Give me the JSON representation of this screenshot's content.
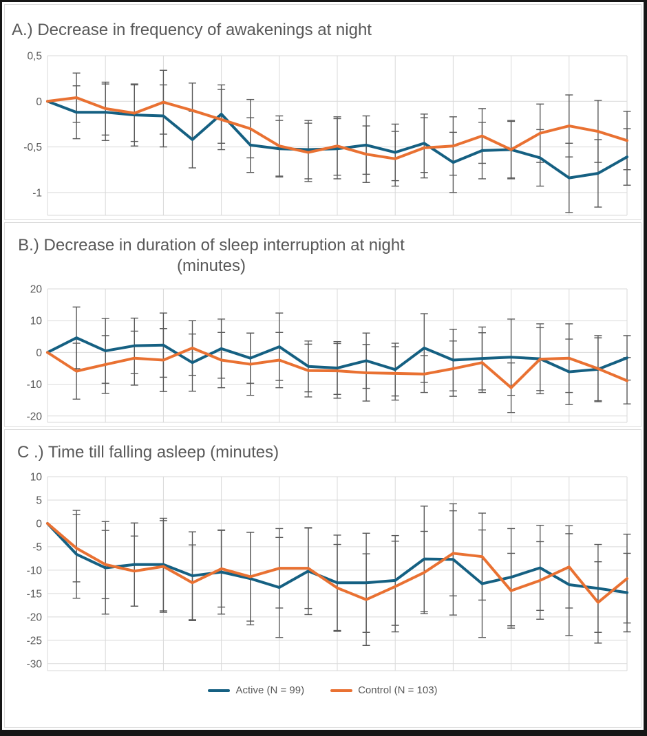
{
  "page": {
    "frame_color": "#161616",
    "background": "#ffffff"
  },
  "colors": {
    "active": "#156082",
    "control": "#E97132",
    "grid": "#D9D9D9",
    "error_bar": "#595959",
    "text": "#595959"
  },
  "legend": {
    "items": [
      {
        "label": "Active (N = 99)",
        "color_key": "active"
      },
      {
        "label": "Control (N = 103)",
        "color_key": "control"
      }
    ],
    "position": "bottom-center, shared, shown under chart C"
  },
  "chart_data": [
    {
      "id": "A",
      "type": "line",
      "title_lines": [
        "A.) Decrease in frequency of awakenings at night"
      ],
      "x_axis": {
        "n_points": 21,
        "tick_labels_visible": false,
        "gridline_every": 2
      },
      "ylim": [
        -1.25,
        0.5
      ],
      "yticks": [
        {
          "v": 0.5,
          "label": "0,5"
        },
        {
          "v": 0,
          "label": "0"
        },
        {
          "v": -0.5,
          "label": "-0,5"
        },
        {
          "v": -1,
          "label": "-1"
        }
      ],
      "error_bars": true,
      "series": [
        {
          "name": "Active (N = 99)",
          "color_key": "active",
          "values": [
            0,
            -0.12,
            -0.12,
            -0.15,
            -0.16,
            -0.42,
            -0.14,
            -0.48,
            -0.52,
            -0.53,
            -0.52,
            -0.48,
            -0.56,
            -0.46,
            -0.67,
            -0.54,
            -0.53,
            -0.62,
            -0.84,
            -0.79,
            -0.61
          ],
          "errors": [
            0,
            0.29,
            0.31,
            0.34,
            0.34,
            0.31,
            0.32,
            0.3,
            0.31,
            0.32,
            0.33,
            0.32,
            0.31,
            0.32,
            0.33,
            0.31,
            0.32,
            0.31,
            0.38,
            0.37,
            0.31
          ]
        },
        {
          "name": "Control (N = 103)",
          "color_key": "control",
          "values": [
            0,
            0.04,
            -0.08,
            -0.13,
            -0.01,
            -0.1,
            -0.2,
            -0.3,
            -0.49,
            -0.56,
            -0.49,
            -0.58,
            -0.63,
            -0.51,
            -0.49,
            -0.38,
            -0.53,
            -0.35,
            -0.27,
            -0.33,
            -0.43
          ],
          "errors": [
            0,
            0.27,
            0.29,
            0.31,
            0.35,
            0.3,
            0.33,
            0.32,
            0.33,
            0.32,
            0.32,
            0.31,
            0.3,
            0.33,
            0.32,
            0.3,
            0.31,
            0.32,
            0.34,
            0.34,
            0.32
          ]
        }
      ]
    },
    {
      "id": "B",
      "type": "line",
      "title_lines": [
        "B.) Decrease in duration of sleep interruption at night",
        "(minutes)"
      ],
      "x_axis": {
        "n_points": 21,
        "tick_labels_visible": false,
        "gridline_every": 2
      },
      "ylim": [
        -22,
        20
      ],
      "yticks": [
        {
          "v": 20,
          "label": "20"
        },
        {
          "v": 10,
          "label": "10"
        },
        {
          "v": 0,
          "label": "0"
        },
        {
          "v": -10,
          "label": "-10"
        },
        {
          "v": -20,
          "label": "-20"
        }
      ],
      "error_bars": true,
      "series": [
        {
          "name": "Active (N = 99)",
          "color_key": "active",
          "values": [
            0,
            4.6,
            0.5,
            2.1,
            2.3,
            -3.2,
            1.2,
            -1.8,
            1.8,
            -4.4,
            -4.9,
            -2.6,
            -5.4,
            1.4,
            -2.4,
            -1.9,
            -1.5,
            -2.0,
            -6.1,
            -5.3,
            -1.7
          ],
          "errors": [
            0,
            9.7,
            10.2,
            8.7,
            10.1,
            9.0,
            9.3,
            7.9,
            10.6,
            8.0,
            8.3,
            8.7,
            8.3,
            10.8,
            9.7,
            9.9,
            12.0,
            11.0,
            10.3,
            9.9,
            7.0
          ]
        },
        {
          "name": "Control (N = 103)",
          "color_key": "control",
          "values": [
            0,
            -5.9,
            -3.8,
            -1.8,
            -2.4,
            1.4,
            -2.4,
            -3.7,
            -2.4,
            -5.7,
            -5.8,
            -6.4,
            -6.6,
            -6.8,
            -5.1,
            -3.2,
            -11.1,
            -2.1,
            -1.8,
            -5.1,
            -8.9
          ],
          "errors": [
            0,
            8.8,
            9.1,
            8.5,
            9.9,
            8.6,
            8.7,
            9.8,
            8.7,
            8.3,
            8.6,
            8.9,
            8.4,
            5.8,
            8.7,
            9.4,
            7.8,
            9.9,
            10.8,
            10.4,
            7.3
          ]
        }
      ]
    },
    {
      "id": "C",
      "type": "line",
      "title_lines": [
        "C .) Time till falling asleep (minutes)"
      ],
      "x_axis": {
        "n_points": 21,
        "tick_labels_visible": false,
        "gridline_every": 2
      },
      "ylim": [
        -31.5,
        10
      ],
      "yticks": [
        {
          "v": 10,
          "label": "10"
        },
        {
          "v": 5,
          "label": "5"
        },
        {
          "v": 0,
          "label": "0"
        },
        {
          "v": -5,
          "label": "-5"
        },
        {
          "v": -10,
          "label": "-10"
        },
        {
          "v": -15,
          "label": "-15"
        },
        {
          "v": -20,
          "label": "-20"
        },
        {
          "v": -25,
          "label": "-25"
        },
        {
          "v": -30,
          "label": "-30"
        }
      ],
      "error_bars": true,
      "series": [
        {
          "name": "Active (N = 99)",
          "color_key": "active",
          "values": [
            0,
            -6.6,
            -9.5,
            -8.8,
            -8.8,
            -11.2,
            -10.4,
            -11.8,
            -13.7,
            -10.2,
            -12.7,
            -12.7,
            -12.2,
            -7.6,
            -7.7,
            -12.9,
            -11.5,
            -9.5,
            -13.1,
            -13.9,
            -14.8
          ],
          "errors": [
            0,
            9.4,
            9.9,
            8.9,
            9.9,
            9.4,
            9.0,
            9.9,
            10.7,
            9.3,
            10.2,
            10.6,
            9.6,
            11.3,
            11.9,
            11.5,
            10.4,
            9.1,
            10.9,
            9.4,
            8.4
          ]
        },
        {
          "name": "Control (N = 103)",
          "color_key": "control",
          "values": [
            0,
            -5.3,
            -8.8,
            -10.2,
            -9.2,
            -12.7,
            -9.7,
            -11.4,
            -9.6,
            -9.6,
            -13.8,
            -16.3,
            -13.5,
            -10.5,
            -6.4,
            -7.1,
            -14.4,
            -12.2,
            -9.3,
            -16.9,
            -11.8
          ],
          "errors": [
            0,
            7.2,
            7.3,
            7.5,
            9.8,
            8.1,
            8.2,
            9.5,
            8.5,
            8.6,
            9.3,
            9.8,
            9.7,
            8.8,
            9.1,
            9.3,
            8.0,
            8.3,
            8.8,
            8.7,
            9.5
          ]
        }
      ]
    }
  ]
}
